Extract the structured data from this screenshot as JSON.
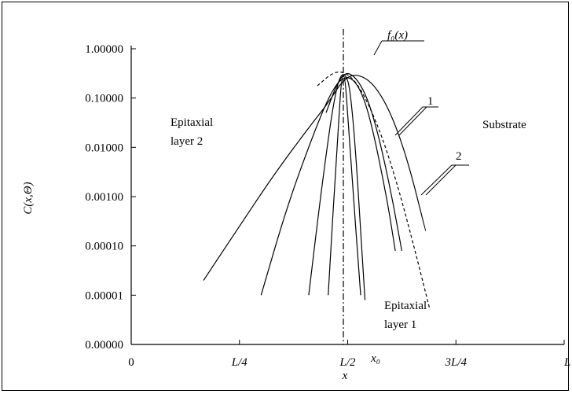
{
  "chart_data": {
    "type": "line",
    "title": "",
    "xlabel": "x",
    "ylabel": "C(x,Θ)",
    "y_scale": "log-like (labels shown as 5-decimal values)",
    "y_ticks": [
      "1.00000",
      "0.10000",
      "0.01000",
      "0.00100",
      "0.00010",
      "0.00001",
      "0.00000"
    ],
    "x_ticks": [
      "0",
      "L/4",
      "L/2",
      "3L/4",
      "L"
    ],
    "x0_label": "x₀",
    "annotations": {
      "f0": "f₀(x)",
      "region_left": [
        "Epitaxial",
        "layer 2"
      ],
      "region_right": "Substrate",
      "region_bottom": [
        "Epitaxial",
        "layer 1"
      ],
      "curve_1": "1",
      "curve_2": "2"
    },
    "x_domain": [
      0,
      1
    ],
    "y_domain_decades": [
      -6,
      0
    ],
    "series": [
      {
        "style": "solid",
        "x": [
          0.167,
          0.25,
          0.33,
          0.41,
          0.455,
          0.49,
          0.52,
          0.56,
          0.6,
          0.64,
          0.68
        ],
        "y": [
          -4.7,
          -3.6,
          -2.55,
          -1.6,
          -1.1,
          -0.62,
          -0.5,
          -0.7,
          -1.3,
          -2.3,
          -3.7
        ]
      },
      {
        "style": "solid",
        "x": [
          0.3,
          0.36,
          0.42,
          0.46,
          0.49,
          0.52,
          0.55,
          0.59,
          0.61
        ],
        "y": [
          -5.0,
          -3.2,
          -1.75,
          -0.9,
          -0.55,
          -0.65,
          -1.3,
          -3.0,
          -4.1
        ]
      },
      {
        "style": "solid",
        "x": [
          0.41,
          0.44,
          0.47,
          0.49,
          0.51,
          0.54
        ],
        "y": [
          -5.0,
          -2.8,
          -0.9,
          -0.4,
          -0.9,
          -5.1
        ]
      },
      {
        "style": "solid",
        "x": [
          0.455,
          0.475,
          0.49,
          0.505,
          0.53
        ],
        "y": [
          -5.0,
          -2.0,
          -0.05,
          -2.0,
          -5.0
        ]
      },
      {
        "style": "solid",
        "x": [
          0.45,
          0.48,
          0.505,
          0.54,
          0.57,
          0.6,
          0.625
        ],
        "y": [
          -1.3,
          -0.6,
          -0.45,
          -0.85,
          -1.7,
          -2.9,
          -4.1
        ]
      },
      {
        "style": "dashed",
        "x": [
          0.43,
          0.47,
          0.5,
          0.53,
          0.57,
          0.61,
          0.65,
          0.69
        ],
        "y": [
          -0.75,
          -0.45,
          -0.5,
          -0.8,
          -1.55,
          -2.6,
          -3.9,
          -5.3
        ]
      },
      {
        "style": "dashdot",
        "x": [
          0.49,
          0.49
        ],
        "y": [
          0.4,
          -6.0
        ]
      }
    ]
  }
}
